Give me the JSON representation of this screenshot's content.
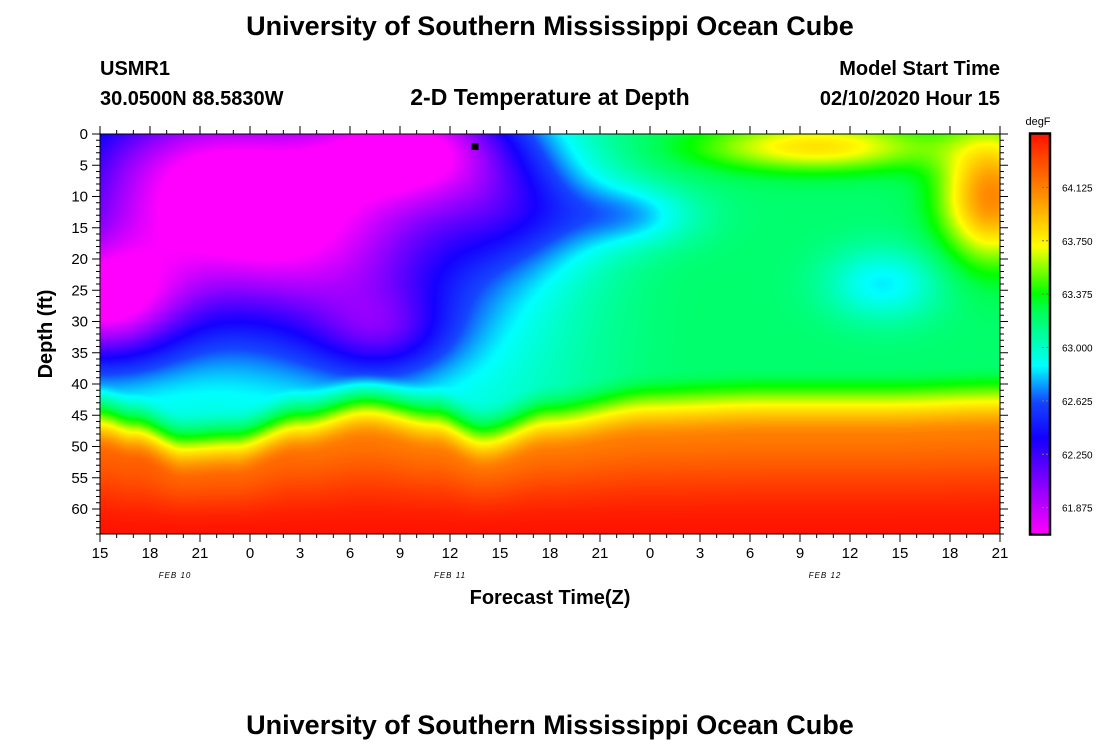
{
  "header": {
    "title": "University of Southern Mississippi Ocean Cube",
    "station": "USMR1",
    "coords": "30.0500N 88.5830W",
    "subtitle": "2-D Temperature at Depth",
    "start_label": "Model Start Time",
    "start_value": "02/10/2020 Hour 15"
  },
  "footer": {
    "title": "University of Southern Mississippi Ocean Cube"
  },
  "chart_data": {
    "type": "heatmap",
    "xlabel": "Forecast Time(Z)",
    "ylabel": "Depth (ft)",
    "x_tick_labels": [
      "15",
      "18",
      "21",
      "0",
      "3",
      "6",
      "9",
      "12",
      "15",
      "18",
      "21",
      "0",
      "3",
      "6",
      "9",
      "12",
      "15",
      "18",
      "21"
    ],
    "x_range_hours": [
      0,
      54
    ],
    "date_labels": [
      {
        "text": "FEB 10",
        "hour": 4.5
      },
      {
        "text": "FEB 11",
        "hour": 21
      },
      {
        "text": "FEB 12",
        "hour": 43.5
      }
    ],
    "y_ticks": [
      0,
      5,
      10,
      15,
      20,
      25,
      30,
      35,
      40,
      45,
      50,
      55,
      60
    ],
    "ylim": [
      0,
      64
    ],
    "y_inverted": true,
    "marker": {
      "hour": 22.5,
      "depth": 2
    },
    "colorbar": {
      "unit": "degF",
      "tick_values": [
        61.875,
        62.25,
        62.625,
        63.0,
        63.375,
        63.75,
        64.125
      ],
      "tick_labels": [
        "61.875",
        "62.250",
        "62.625",
        "63.000",
        "63.375",
        "63.750",
        "64.125"
      ],
      "range": [
        61.69,
        64.5
      ],
      "colormap": "rainbow (magenta-blue-cyan-green-yellow-orange-red)"
    },
    "thermocline_depth": [
      {
        "hour": 0,
        "depth": 41
      },
      {
        "hour": 2,
        "depth": 42.5
      },
      {
        "hour": 5,
        "depth": 45.5
      },
      {
        "hour": 8,
        "depth": 45
      },
      {
        "hour": 12,
        "depth": 41.5
      },
      {
        "hour": 16,
        "depth": 39
      },
      {
        "hour": 20,
        "depth": 41
      },
      {
        "hour": 23,
        "depth": 44
      },
      {
        "hour": 27,
        "depth": 41
      },
      {
        "hour": 33,
        "depth": 39
      },
      {
        "hour": 40,
        "depth": 38.5
      },
      {
        "hour": 47,
        "depth": 38.5
      },
      {
        "hour": 54,
        "depth": 38
      }
    ],
    "upper_layer_features": [
      {
        "region": "coldest core, near surface",
        "hour": 6.5,
        "depth": 8,
        "temp": 61.72
      },
      {
        "region": "cold core, deep",
        "hour": 0.5,
        "depth": 27,
        "temp": 61.75
      },
      {
        "region": "cold pocket, surface",
        "hour": 22,
        "depth": 2,
        "temp": 61.73
      },
      {
        "region": "warm intrusion, surface",
        "hour": 31,
        "depth": 6,
        "temp": 63.2
      },
      {
        "region": "cool eddy",
        "hour": 32,
        "depth": 12,
        "temp": 62.75
      },
      {
        "region": "cool eddy",
        "hour": 47,
        "depth": 24,
        "temp": 62.73
      },
      {
        "region": "warm surface patch",
        "hour": 43,
        "depth": 3,
        "temp": 63.75
      },
      {
        "region": "warm surface patch",
        "hour": 53,
        "depth": 10,
        "temp": 64.2
      }
    ]
  }
}
